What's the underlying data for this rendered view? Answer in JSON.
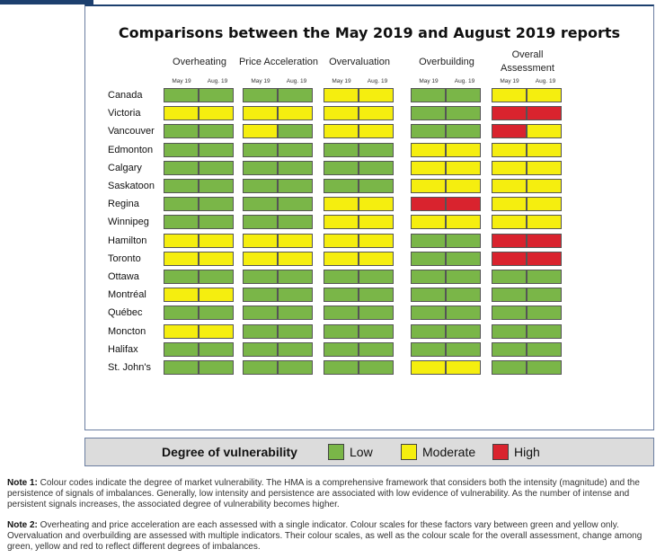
{
  "chart_data": {
    "type": "heatmap",
    "title": "Comparisons between the May 2019 and August 2019 reports",
    "columns": [
      {
        "name": "Overheating",
        "periods": [
          "May 19",
          "Aug. 19"
        ]
      },
      {
        "name": "Price Acceleration",
        "periods": [
          "May 19",
          "Aug. 19"
        ]
      },
      {
        "name": "Overvaluation",
        "periods": [
          "May 19",
          "Aug. 19"
        ]
      },
      {
        "name": "Overbuilding",
        "periods": [
          "May 19",
          "Aug. 19"
        ]
      },
      {
        "name": "Overall Assessment",
        "periods": [
          "May 19",
          "Aug. 19"
        ]
      }
    ],
    "rows": [
      "Canada",
      "Victoria",
      "Vancouver",
      "Edmonton",
      "Calgary",
      "Saskatoon",
      "Regina",
      "Winnipeg",
      "Hamilton",
      "Toronto",
      "Ottawa",
      "Montréal",
      "Québec",
      "Moncton",
      "Halifax",
      "St. John's"
    ],
    "levels": {
      "G": "Low",
      "Y": "Moderate",
      "R": "High"
    },
    "colors": {
      "G": "#7ab648",
      "Y": "#f5ee0f",
      "R": "#d9232e"
    },
    "values": [
      [
        "G",
        "G",
        "G",
        "G",
        "Y",
        "Y",
        "G",
        "G",
        "Y",
        "Y"
      ],
      [
        "Y",
        "Y",
        "Y",
        "Y",
        "Y",
        "Y",
        "G",
        "G",
        "R",
        "R"
      ],
      [
        "G",
        "G",
        "Y",
        "G",
        "Y",
        "Y",
        "G",
        "G",
        "R",
        "Y"
      ],
      [
        "G",
        "G",
        "G",
        "G",
        "G",
        "G",
        "Y",
        "Y",
        "Y",
        "Y"
      ],
      [
        "G",
        "G",
        "G",
        "G",
        "G",
        "G",
        "Y",
        "Y",
        "Y",
        "Y"
      ],
      [
        "G",
        "G",
        "G",
        "G",
        "G",
        "G",
        "Y",
        "Y",
        "Y",
        "Y"
      ],
      [
        "G",
        "G",
        "G",
        "G",
        "Y",
        "Y",
        "R",
        "R",
        "Y",
        "Y"
      ],
      [
        "G",
        "G",
        "G",
        "G",
        "Y",
        "Y",
        "Y",
        "Y",
        "Y",
        "Y"
      ],
      [
        "Y",
        "Y",
        "Y",
        "Y",
        "Y",
        "Y",
        "G",
        "G",
        "R",
        "R"
      ],
      [
        "Y",
        "Y",
        "Y",
        "Y",
        "Y",
        "Y",
        "G",
        "G",
        "R",
        "R"
      ],
      [
        "G",
        "G",
        "G",
        "G",
        "G",
        "G",
        "G",
        "G",
        "G",
        "G"
      ],
      [
        "Y",
        "Y",
        "G",
        "G",
        "G",
        "G",
        "G",
        "G",
        "G",
        "G"
      ],
      [
        "G",
        "G",
        "G",
        "G",
        "G",
        "G",
        "G",
        "G",
        "G",
        "G"
      ],
      [
        "Y",
        "Y",
        "G",
        "G",
        "G",
        "G",
        "G",
        "G",
        "G",
        "G"
      ],
      [
        "G",
        "G",
        "G",
        "G",
        "G",
        "G",
        "G",
        "G",
        "G",
        "G"
      ],
      [
        "G",
        "G",
        "G",
        "G",
        "G",
        "G",
        "Y",
        "Y",
        "G",
        "G"
      ]
    ],
    "legend": {
      "title": "Degree of vulnerability",
      "items": [
        {
          "key": "G",
          "label": "Low"
        },
        {
          "key": "Y",
          "label": "Moderate"
        },
        {
          "key": "R",
          "label": "High"
        }
      ]
    }
  },
  "notes": [
    {
      "label": "Note 1:",
      "text": " Colour codes indicate the degree of market vulnerability. The HMA is a comprehensive framework that considers both the intensity (magnitude) and the persistence of signals of imbalances. Generally, low intensity and persistence are associated with low evidence of vulnerability. As the number of intense and persistent signals increases, the associated degree of vulnerability becomes higher."
    },
    {
      "label": "Note 2:",
      "text": " Overheating and price acceleration are each assessed with a single indicator. Colour scales for these factors vary between green and yellow only. Overvaluation and overbuilding are assessed with multiple indicators. Their colour scales, as well as the colour scale for the overall assessment, change among green, yellow and red to reflect different degrees of imbalances."
    }
  ]
}
